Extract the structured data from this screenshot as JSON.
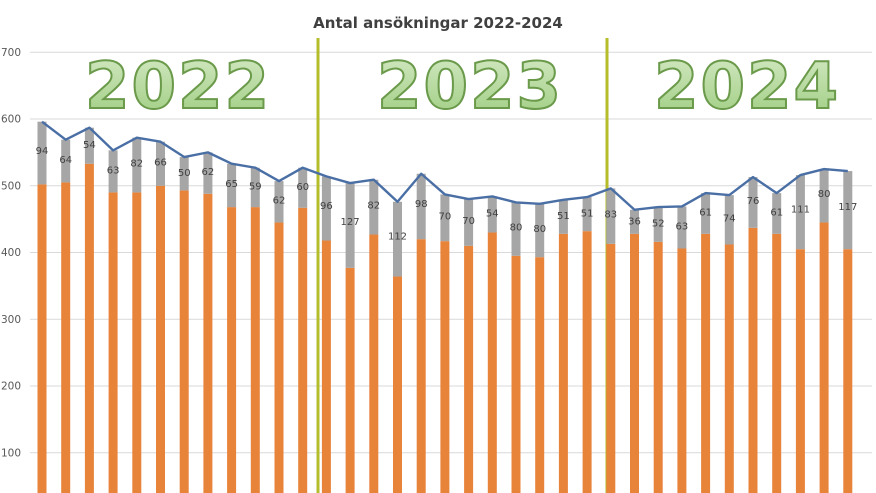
{
  "chart_data": {
    "type": "bar",
    "title": "Antal ansökningar 2022-2024",
    "ylim": [
      0,
      700
    ],
    "yticks": [
      100,
      200,
      300,
      400,
      500,
      600,
      700
    ],
    "grid": true,
    "stacked": true,
    "year_labels": [
      "2022",
      "2023",
      "2024"
    ],
    "series": [
      {
        "values": [
          502,
          505,
          533,
          490,
          490,
          500,
          493,
          488,
          468,
          468,
          445,
          467,
          418,
          377,
          427,
          364,
          420,
          417,
          410,
          430,
          395,
          393,
          428,
          432,
          413,
          428,
          416,
          406,
          428,
          412,
          437,
          428,
          405,
          445,
          405
        ]
      },
      {
        "values": [
          94,
          64,
          54,
          63,
          82,
          66,
          50,
          62,
          65,
          59,
          62,
          60,
          96,
          127,
          82,
          112,
          98,
          70,
          70,
          54,
          80,
          80,
          51,
          51,
          83,
          36,
          52,
          63,
          61,
          74,
          76,
          61,
          111,
          80,
          117
        ]
      },
      {
        "type": "line",
        "values": [
          596,
          569,
          587,
          553,
          572,
          566,
          543,
          550,
          533,
          527,
          507,
          527,
          514,
          504,
          509,
          476,
          518,
          487,
          480,
          484,
          475,
          473,
          479,
          483,
          496,
          464,
          468,
          469,
          489,
          486,
          513,
          489,
          516,
          525,
          522
        ]
      }
    ],
    "data_labels": [
      "94",
      "64",
      "54",
      "63",
      "82",
      "66",
      "50",
      "62",
      "65",
      "59",
      "62",
      "60",
      "96",
      "127",
      "82",
      "112",
      "98",
      "70",
      "70",
      "54",
      "80",
      "80",
      "51",
      "51",
      "83",
      "36",
      "52",
      "63",
      "61",
      "74",
      "76",
      "61",
      "111",
      "80",
      "117"
    ],
    "colors": {
      "bar_lower": "#e8833a",
      "bar_upper": "#a6a6a6",
      "line": "#4a6fa5",
      "divider": "#b5bd2a",
      "year_fill_top": "#d4e9c4",
      "year_fill_bottom": "#9ccc7e",
      "year_stroke": "#6a9a4a",
      "grid": "#d9d9d9",
      "tick_text": "#595959"
    }
  }
}
